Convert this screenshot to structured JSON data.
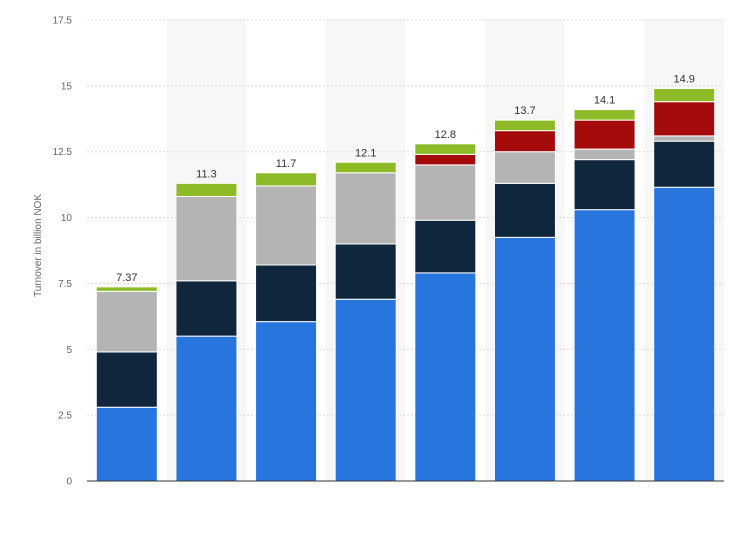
{
  "chart_data": {
    "type": "bar",
    "stacked": true,
    "title": "",
    "xlabel": "",
    "ylabel": "Turnover in billion NOK",
    "ylim": [
      0,
      17.5
    ],
    "yticks": [
      0,
      2.5,
      5,
      7.5,
      10,
      12.5,
      15,
      17.5
    ],
    "ytick_labels": [
      "0",
      "2.5",
      "5",
      "7.5",
      "10",
      "12.5",
      "15",
      "17.5"
    ],
    "grid": true,
    "categories": [
      "",
      "",
      "",
      "",
      "",
      "",
      "",
      ""
    ],
    "series": [
      {
        "color": "#2876dd",
        "values": [
          2.8,
          5.5,
          6.05,
          6.9,
          7.9,
          9.25,
          10.3,
          11.15
        ]
      },
      {
        "color": "#10263d",
        "values": [
          2.1,
          2.1,
          2.15,
          2.1,
          2.0,
          2.05,
          1.9,
          1.75
        ]
      },
      {
        "color": "#b4b4b4",
        "values": [
          2.3,
          3.2,
          3.0,
          2.7,
          2.1,
          1.2,
          0.4,
          0.2
        ]
      },
      {
        "color": "#a60b0b",
        "values": [
          0,
          0,
          0,
          0,
          0.4,
          0.8,
          1.1,
          1.3
        ]
      },
      {
        "color": "#8dbb27",
        "values": [
          0.17,
          0.5,
          0.5,
          0.4,
          0.4,
          0.4,
          0.4,
          0.5
        ]
      }
    ],
    "totals": [
      "7.37",
      "11.3",
      "11.7",
      "12.1",
      "12.8",
      "13.7",
      "14.1",
      "14.9"
    ]
  }
}
